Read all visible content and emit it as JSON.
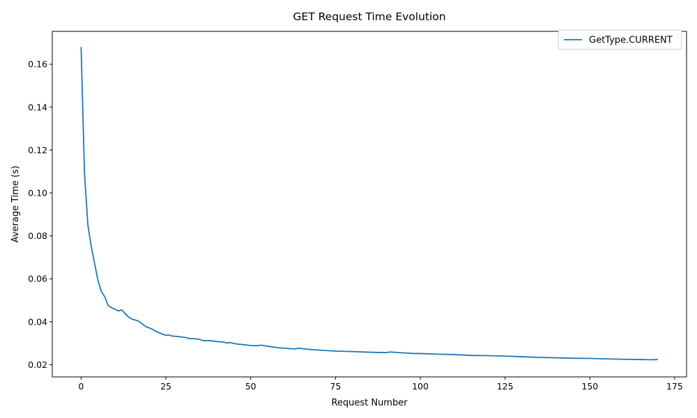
{
  "chart_data": {
    "type": "line",
    "title": "GET Request Time Evolution",
    "xlabel": "Request Number",
    "ylabel": "Average Time (s)",
    "xlim": [
      -8.5,
      178.5
    ],
    "ylim": [
      0.0143,
      0.1753
    ],
    "xticks": [
      0,
      25,
      50,
      75,
      100,
      125,
      150,
      175
    ],
    "yticks": [
      0.02,
      0.04,
      0.06,
      0.08,
      0.1,
      0.12,
      0.14,
      0.16
    ],
    "ytick_labels": [
      "0.02",
      "0.04",
      "0.06",
      "0.08",
      "0.10",
      "0.12",
      "0.14",
      "0.16"
    ],
    "grid": false,
    "legend_position": "top-right",
    "series": [
      {
        "name": "GetType.CURRENT",
        "color": "#1f77b4",
        "x": [
          0,
          1,
          2,
          3,
          4,
          5,
          6,
          7,
          8,
          9,
          10,
          11,
          12,
          13,
          14,
          15,
          16,
          17,
          18,
          19,
          20,
          21,
          22,
          23,
          24,
          25,
          26,
          27,
          28,
          29,
          30,
          31,
          32,
          33,
          34,
          35,
          36,
          37,
          38,
          39,
          40,
          42,
          43,
          44,
          45,
          46,
          48,
          50,
          52,
          53,
          55,
          58,
          60,
          62,
          63,
          64,
          65,
          68,
          70,
          72,
          75,
          78,
          80,
          85,
          90,
          91,
          95,
          98,
          100,
          105,
          110,
          115,
          120,
          125,
          130,
          135,
          140,
          145,
          150,
          155,
          160,
          165,
          168,
          170
        ],
        "y": [
          0.168,
          0.109,
          0.085,
          0.075,
          0.067,
          0.059,
          0.054,
          0.0515,
          0.0475,
          0.0465,
          0.0458,
          0.045,
          0.0455,
          0.0437,
          0.0422,
          0.0412,
          0.0408,
          0.0402,
          0.039,
          0.0378,
          0.0372,
          0.0365,
          0.0356,
          0.0349,
          0.0342,
          0.0337,
          0.0338,
          0.0333,
          0.0332,
          0.033,
          0.0328,
          0.0326,
          0.0321,
          0.0321,
          0.032,
          0.0317,
          0.0312,
          0.0312,
          0.0312,
          0.031,
          0.0308,
          0.0305,
          0.0301,
          0.0303,
          0.0299,
          0.0296,
          0.0293,
          0.0289,
          0.0288,
          0.0291,
          0.0286,
          0.0279,
          0.0277,
          0.0274,
          0.0273,
          0.0277,
          0.0275,
          0.027,
          0.0268,
          0.0266,
          0.0263,
          0.0262,
          0.0261,
          0.0258,
          0.0256,
          0.0259,
          0.0255,
          0.0252,
          0.0252,
          0.0249,
          0.0247,
          0.0243,
          0.0242,
          0.024,
          0.0237,
          0.0234,
          0.0232,
          0.023,
          0.0229,
          0.0227,
          0.0225,
          0.0224,
          0.0223,
          0.0224
        ]
      }
    ]
  }
}
